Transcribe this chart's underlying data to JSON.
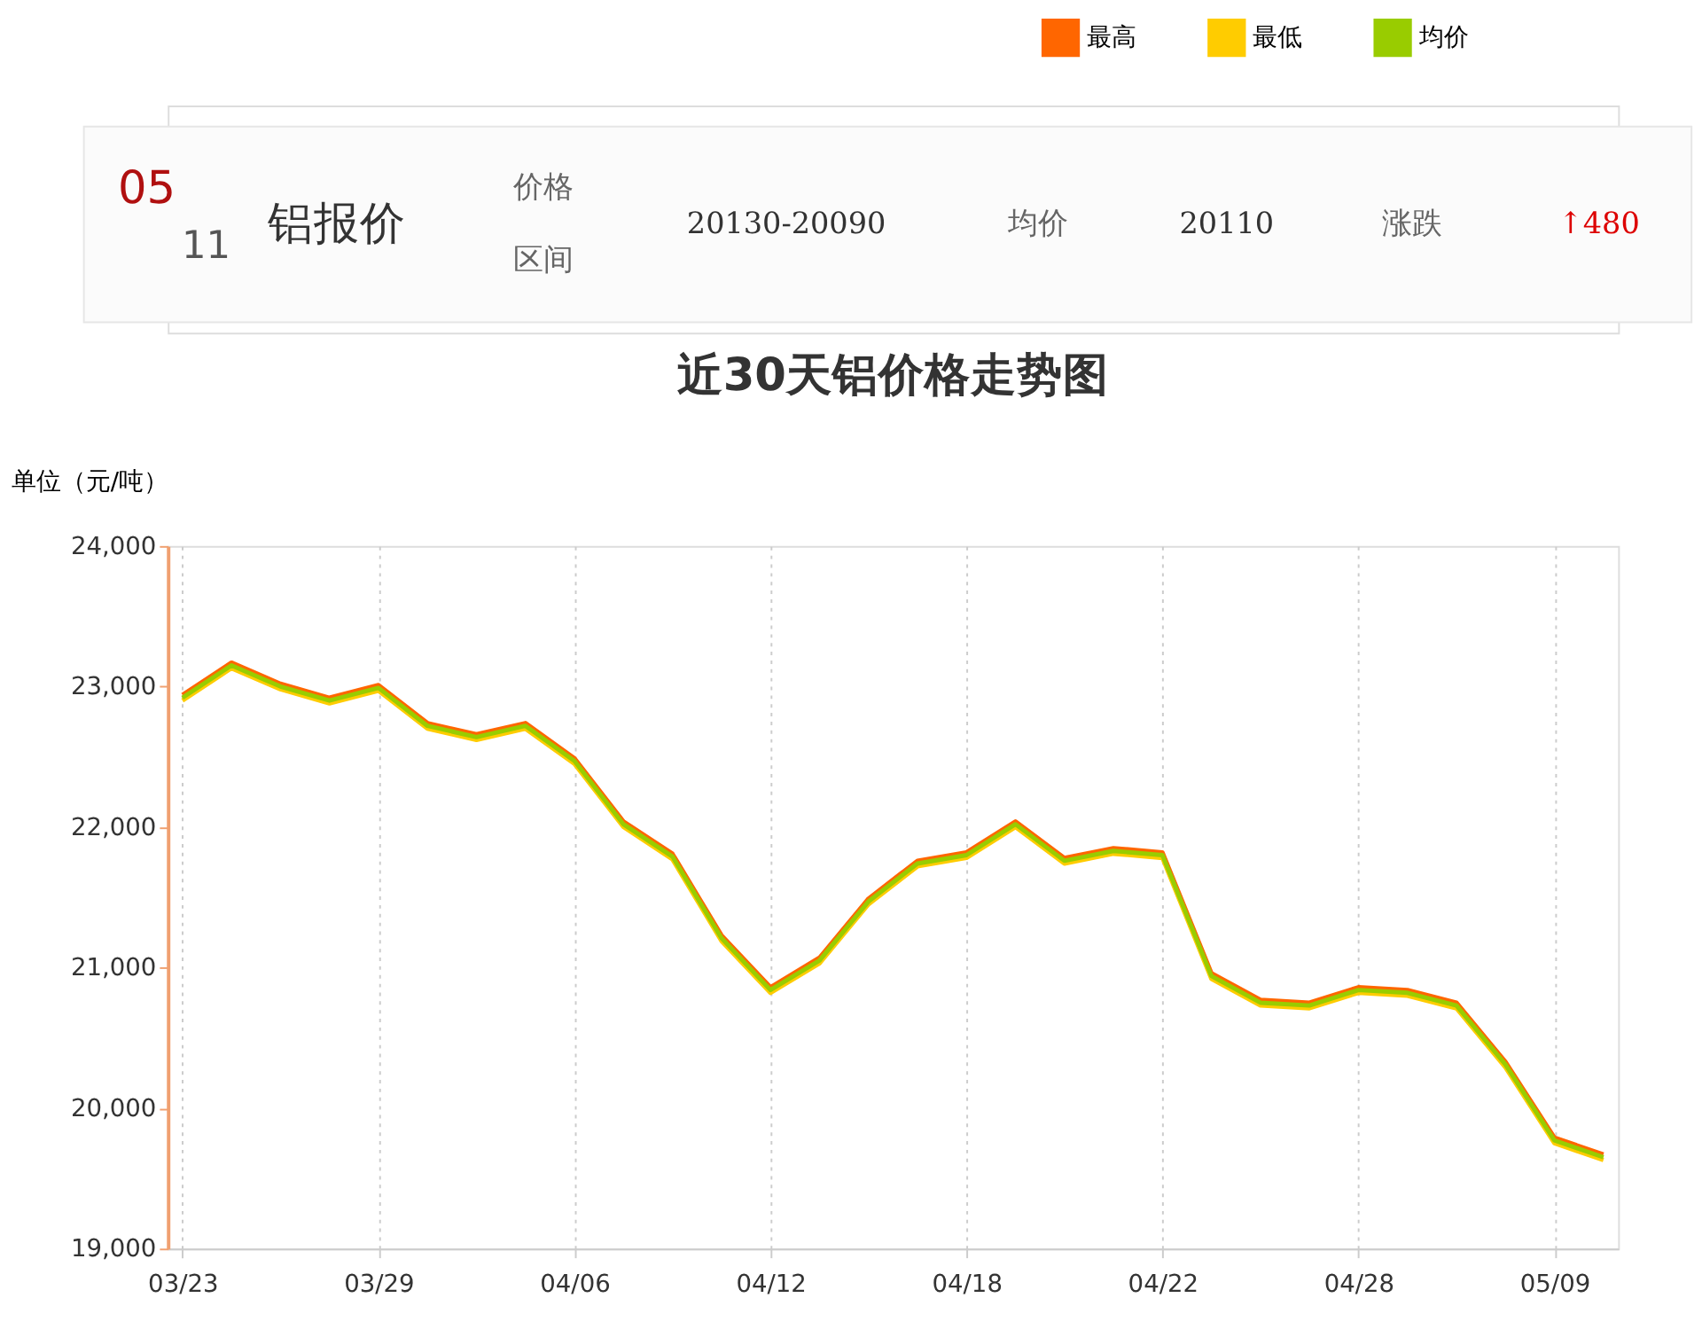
{
  "chart_data": {
    "type": "line",
    "title": "近30天铝价格走势图",
    "ylabel": "单位（元/吨）",
    "annotations": [
      "05",
      "11",
      "铝报价",
      "价格",
      "区间",
      "20130-20090",
      "均价",
      "20110",
      "涨跌",
      "↑480"
    ],
    "categories": [
      "03/23",
      null,
      null,
      null,
      "03/29",
      null,
      null,
      null,
      "04/06",
      null,
      null,
      null,
      "04/12",
      null,
      null,
      null,
      "04/18",
      null,
      null,
      null,
      "04/22",
      null,
      null,
      null,
      "04/28",
      null,
      null,
      null,
      "05/09",
      null
    ],
    "series": [
      {
        "name": "最高",
        "color": "#ff6600",
        "values": [
          22940,
          23170,
          23020,
          22920,
          23010,
          22740,
          22660,
          22740,
          22490,
          22040,
          21810,
          21230,
          20860,
          21070,
          21490,
          21760,
          21820,
          22040,
          21780,
          21850,
          21820,
          20960,
          20770,
          20750,
          20860,
          20840,
          20750,
          20330,
          19790,
          19670
        ]
      },
      {
        "name": "最低",
        "color": "#ffcc00",
        "values": [
          22900,
          23130,
          22980,
          22880,
          22970,
          22700,
          22620,
          22700,
          22450,
          22000,
          21770,
          21190,
          20820,
          21030,
          21450,
          21720,
          21780,
          22000,
          21740,
          21810,
          21780,
          20920,
          20730,
          20710,
          20820,
          20800,
          20710,
          20290,
          19750,
          19630
        ]
      },
      {
        "name": "均价",
        "color": "#99cc00",
        "values": [
          22920,
          23150,
          23000,
          22900,
          22990,
          22720,
          22640,
          22720,
          22470,
          22020,
          21790,
          21210,
          20840,
          21050,
          21470,
          21740,
          21800,
          22020,
          21760,
          21830,
          21800,
          20940,
          20750,
          20730,
          20840,
          20820,
          20730,
          20310,
          19770,
          19650
        ]
      }
    ],
    "ylim": [
      19000,
      24000
    ],
    "yticks": [
      {
        "value": 19000,
        "label": "19,000"
      },
      {
        "value": 20000,
        "label": "20,000"
      },
      {
        "value": 21000,
        "label": "21,000"
      },
      {
        "value": 22000,
        "label": "22,000"
      },
      {
        "value": 23000,
        "label": "23,000"
      },
      {
        "value": 24000,
        "label": "24,000"
      }
    ],
    "grid": "x",
    "legend": "top right",
    "marker": "none",
    "line_style": "solid"
  }
}
